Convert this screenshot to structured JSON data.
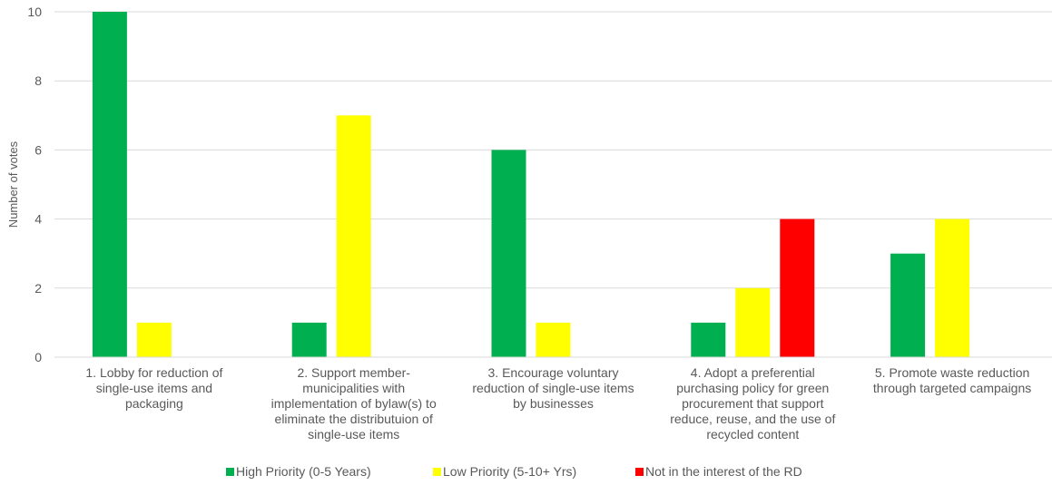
{
  "chart_data": {
    "type": "bar",
    "title": "",
    "xlabel": "",
    "ylabel": "Number of votes",
    "ylim": [
      0,
      10
    ],
    "yticks": [
      0,
      2,
      4,
      6,
      8,
      10
    ],
    "grid": true,
    "legend_position": "bottom",
    "categories": [
      [
        "1. Lobby for reduction of",
        "single-use items and",
        "packaging"
      ],
      [
        "2. Support member-",
        "municipalities with",
        "implementation of bylaw(s) to",
        "eliminate the distributuion of",
        "single-use items"
      ],
      [
        "3. Encourage voluntary",
        "reduction of single-use items",
        "by businesses"
      ],
      [
        "4. Adopt a preferential",
        "purchasing policy for green",
        "procurement that support",
        "reduce, reuse, and the use of",
        "recycled content"
      ],
      [
        "5. Promote waste reduction",
        "through targeted campaigns"
      ]
    ],
    "series": [
      {
        "name": "High Priority (0-5 Years)",
        "color": "#00b050",
        "values": [
          10,
          1,
          6,
          1,
          3
        ]
      },
      {
        "name": "Low Priority (5-10+ Yrs)",
        "color": "#ffff00",
        "values": [
          1,
          7,
          1,
          2,
          4
        ]
      },
      {
        "name": "Not in the interest of the RD",
        "color": "#ff0000",
        "values": [
          0,
          0,
          0,
          4,
          0
        ]
      }
    ]
  }
}
